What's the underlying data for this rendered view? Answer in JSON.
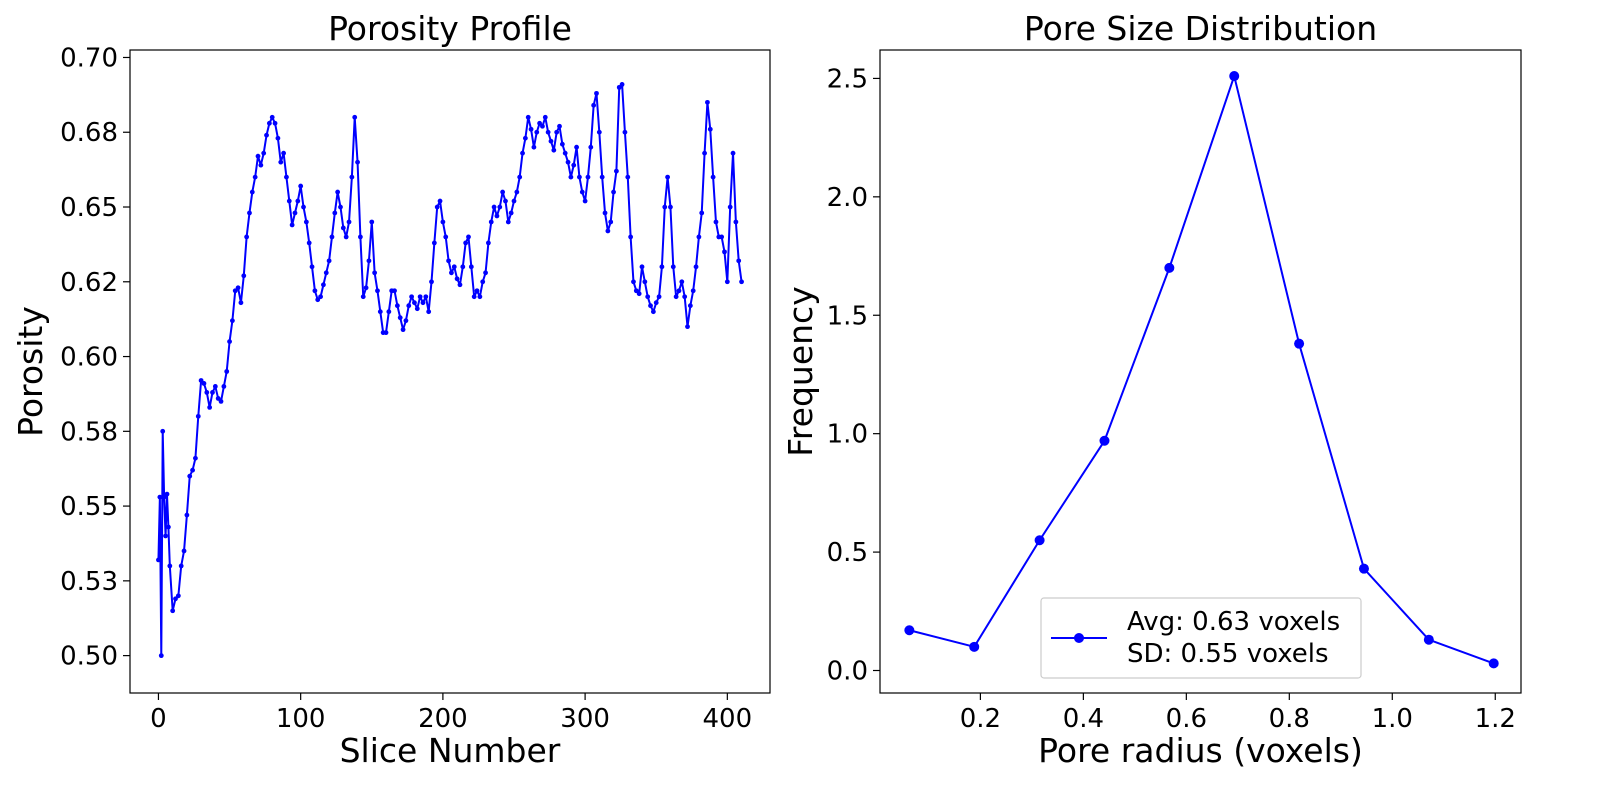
{
  "colors": {
    "line": "#0000ff",
    "axis": "#000000",
    "legend_border": "#cccccc"
  },
  "chart_data": [
    {
      "type": "line",
      "title": "Porosity Profile",
      "xlabel": "Slice Number",
      "ylabel": "Porosity",
      "xlim": [
        -20,
        430
      ],
      "ylim": [
        0.4875,
        0.7025
      ],
      "xticks": [
        0,
        100,
        200,
        300,
        400
      ],
      "xtick_labels": [
        "0",
        "100",
        "200",
        "300",
        "400"
      ],
      "yticks": [
        0.5,
        0.525,
        0.55,
        0.575,
        0.6,
        0.625,
        0.65,
        0.675,
        0.7
      ],
      "ytick_labels": [
        "0.50",
        "0.53",
        "0.55",
        "0.58",
        "0.60",
        "0.62",
        "0.65",
        "0.68",
        "0.70"
      ],
      "grid": false,
      "marker": "circle-small",
      "series": [
        {
          "anchors": [
            [
              0,
              0.532
            ],
            [
              1,
              0.553
            ],
            [
              2,
              0.5
            ],
            [
              3,
              0.575
            ],
            [
              4,
              0.553
            ],
            [
              5,
              0.54
            ],
            [
              6,
              0.554
            ],
            [
              7,
              0.543
            ],
            [
              8,
              0.53
            ],
            [
              10,
              0.515
            ],
            [
              12,
              0.519
            ],
            [
              14,
              0.52
            ],
            [
              16,
              0.53
            ],
            [
              18,
              0.535
            ],
            [
              20,
              0.547
            ],
            [
              22,
              0.56
            ],
            [
              24,
              0.562
            ],
            [
              26,
              0.566
            ],
            [
              28,
              0.58
            ],
            [
              30,
              0.592
            ],
            [
              32,
              0.591
            ],
            [
              34,
              0.588
            ],
            [
              36,
              0.583
            ],
            [
              38,
              0.588
            ],
            [
              40,
              0.59
            ],
            [
              42,
              0.586
            ],
            [
              44,
              0.585
            ],
            [
              46,
              0.59
            ],
            [
              48,
              0.595
            ],
            [
              50,
              0.605
            ],
            [
              52,
              0.612
            ],
            [
              54,
              0.622
            ],
            [
              56,
              0.623
            ],
            [
              58,
              0.618
            ],
            [
              60,
              0.627
            ],
            [
              62,
              0.64
            ],
            [
              64,
              0.648
            ],
            [
              66,
              0.655
            ],
            [
              68,
              0.66
            ],
            [
              70,
              0.667
            ],
            [
              72,
              0.664
            ],
            [
              74,
              0.668
            ],
            [
              76,
              0.674
            ],
            [
              78,
              0.678
            ],
            [
              80,
              0.68
            ],
            [
              82,
              0.678
            ],
            [
              84,
              0.673
            ],
            [
              86,
              0.665
            ],
            [
              88,
              0.668
            ],
            [
              90,
              0.66
            ],
            [
              92,
              0.652
            ],
            [
              94,
              0.644
            ],
            [
              96,
              0.648
            ],
            [
              98,
              0.652
            ],
            [
              100,
              0.657
            ],
            [
              102,
              0.65
            ],
            [
              104,
              0.645
            ],
            [
              106,
              0.638
            ],
            [
              108,
              0.63
            ],
            [
              110,
              0.622
            ],
            [
              112,
              0.619
            ],
            [
              114,
              0.62
            ],
            [
              116,
              0.624
            ],
            [
              118,
              0.628
            ],
            [
              120,
              0.632
            ],
            [
              122,
              0.64
            ],
            [
              124,
              0.648
            ],
            [
              126,
              0.655
            ],
            [
              128,
              0.65
            ],
            [
              130,
              0.643
            ],
            [
              132,
              0.64
            ],
            [
              134,
              0.645
            ],
            [
              136,
              0.66
            ],
            [
              138,
              0.68
            ],
            [
              140,
              0.665
            ],
            [
              142,
              0.64
            ],
            [
              144,
              0.62
            ],
            [
              146,
              0.623
            ],
            [
              148,
              0.632
            ],
            [
              150,
              0.645
            ],
            [
              152,
              0.628
            ],
            [
              154,
              0.622
            ],
            [
              156,
              0.615
            ],
            [
              158,
              0.608
            ],
            [
              160,
              0.608
            ],
            [
              162,
              0.615
            ],
            [
              164,
              0.622
            ],
            [
              166,
              0.622
            ],
            [
              168,
              0.617
            ],
            [
              170,
              0.613
            ],
            [
              172,
              0.609
            ],
            [
              174,
              0.612
            ],
            [
              176,
              0.617
            ],
            [
              178,
              0.62
            ],
            [
              180,
              0.618
            ],
            [
              182,
              0.616
            ],
            [
              184,
              0.62
            ],
            [
              186,
              0.618
            ],
            [
              188,
              0.62
            ],
            [
              190,
              0.615
            ],
            [
              192,
              0.625
            ],
            [
              194,
              0.638
            ],
            [
              196,
              0.65
            ],
            [
              198,
              0.652
            ],
            [
              200,
              0.645
            ],
            [
              202,
              0.64
            ],
            [
              204,
              0.632
            ],
            [
              206,
              0.628
            ],
            [
              208,
              0.63
            ],
            [
              210,
              0.626
            ],
            [
              212,
              0.624
            ],
            [
              214,
              0.63
            ],
            [
              216,
              0.638
            ],
            [
              218,
              0.64
            ],
            [
              220,
              0.63
            ],
            [
              222,
              0.62
            ],
            [
              224,
              0.622
            ],
            [
              226,
              0.62
            ],
            [
              228,
              0.625
            ],
            [
              230,
              0.628
            ],
            [
              232,
              0.638
            ],
            [
              234,
              0.645
            ],
            [
              236,
              0.65
            ],
            [
              238,
              0.647
            ],
            [
              240,
              0.65
            ],
            [
              242,
              0.655
            ],
            [
              244,
              0.652
            ],
            [
              246,
              0.645
            ],
            [
              248,
              0.648
            ],
            [
              250,
              0.652
            ],
            [
              252,
              0.655
            ],
            [
              254,
              0.66
            ],
            [
              256,
              0.668
            ],
            [
              258,
              0.673
            ],
            [
              260,
              0.68
            ],
            [
              262,
              0.676
            ],
            [
              264,
              0.67
            ],
            [
              266,
              0.675
            ],
            [
              268,
              0.678
            ],
            [
              270,
              0.677
            ],
            [
              272,
              0.68
            ],
            [
              274,
              0.675
            ],
            [
              276,
              0.672
            ],
            [
              278,
              0.669
            ],
            [
              280,
              0.675
            ],
            [
              282,
              0.677
            ],
            [
              284,
              0.671
            ],
            [
              286,
              0.668
            ],
            [
              288,
              0.665
            ],
            [
              290,
              0.66
            ],
            [
              292,
              0.664
            ],
            [
              294,
              0.67
            ],
            [
              296,
              0.66
            ],
            [
              298,
              0.655
            ],
            [
              300,
              0.652
            ],
            [
              302,
              0.66
            ],
            [
              304,
              0.67
            ],
            [
              306,
              0.684
            ],
            [
              308,
              0.688
            ],
            [
              310,
              0.675
            ],
            [
              312,
              0.66
            ],
            [
              314,
              0.648
            ],
            [
              316,
              0.642
            ],
            [
              318,
              0.645
            ],
            [
              320,
              0.655
            ],
            [
              322,
              0.662
            ],
            [
              324,
              0.69
            ],
            [
              326,
              0.691
            ],
            [
              328,
              0.675
            ],
            [
              330,
              0.66
            ],
            [
              332,
              0.64
            ],
            [
              334,
              0.625
            ],
            [
              336,
              0.622
            ],
            [
              338,
              0.621
            ],
            [
              340,
              0.63
            ],
            [
              342,
              0.625
            ],
            [
              344,
              0.62
            ],
            [
              346,
              0.617
            ],
            [
              348,
              0.615
            ],
            [
              350,
              0.618
            ],
            [
              352,
              0.62
            ],
            [
              354,
              0.63
            ],
            [
              356,
              0.65
            ],
            [
              358,
              0.66
            ],
            [
              360,
              0.65
            ],
            [
              362,
              0.63
            ],
            [
              364,
              0.62
            ],
            [
              366,
              0.622
            ],
            [
              368,
              0.625
            ],
            [
              370,
              0.62
            ],
            [
              372,
              0.61
            ],
            [
              374,
              0.617
            ],
            [
              376,
              0.622
            ],
            [
              378,
              0.63
            ],
            [
              380,
              0.64
            ],
            [
              382,
              0.648
            ],
            [
              384,
              0.668
            ],
            [
              386,
              0.685
            ],
            [
              388,
              0.676
            ],
            [
              390,
              0.66
            ],
            [
              392,
              0.645
            ],
            [
              394,
              0.64
            ],
            [
              396,
              0.64
            ],
            [
              398,
              0.635
            ],
            [
              400,
              0.625
            ],
            [
              402,
              0.65
            ],
            [
              404,
              0.668
            ],
            [
              406,
              0.645
            ],
            [
              408,
              0.632
            ],
            [
              410,
              0.625
            ]
          ]
        }
      ]
    },
    {
      "type": "line",
      "title": "Pore Size Distribution",
      "xlabel": "Pore radius (voxels)",
      "ylabel": "Frequency",
      "xlim": [
        0.005,
        1.25
      ],
      "ylim": [
        -0.095,
        2.62
      ],
      "xticks": [
        0.2,
        0.4,
        0.6,
        0.8,
        1.0,
        1.2
      ],
      "xtick_labels": [
        "0.2",
        "0.4",
        "0.6",
        "0.8",
        "1.0",
        "1.2"
      ],
      "yticks": [
        0.0,
        0.5,
        1.0,
        1.5,
        2.0,
        2.5
      ],
      "ytick_labels": [
        "0.0",
        "0.5",
        "1.0",
        "1.5",
        "2.0",
        "2.5"
      ],
      "grid": false,
      "marker": "circle",
      "legend": {
        "location": "lower-center",
        "entries": [
          "Avg: 0.63 voxels",
          "SD: 0.55 voxels"
        ]
      },
      "series": [
        {
          "name": "Avg: 0.63 voxels\nSD: 0.55 voxels",
          "x": [
            0.062,
            0.188,
            0.315,
            0.441,
            0.567,
            0.693,
            0.819,
            0.945,
            1.071,
            1.197
          ],
          "y": [
            0.17,
            0.1,
            0.55,
            0.97,
            1.7,
            2.51,
            1.38,
            0.43,
            0.13,
            0.03
          ]
        }
      ]
    }
  ]
}
